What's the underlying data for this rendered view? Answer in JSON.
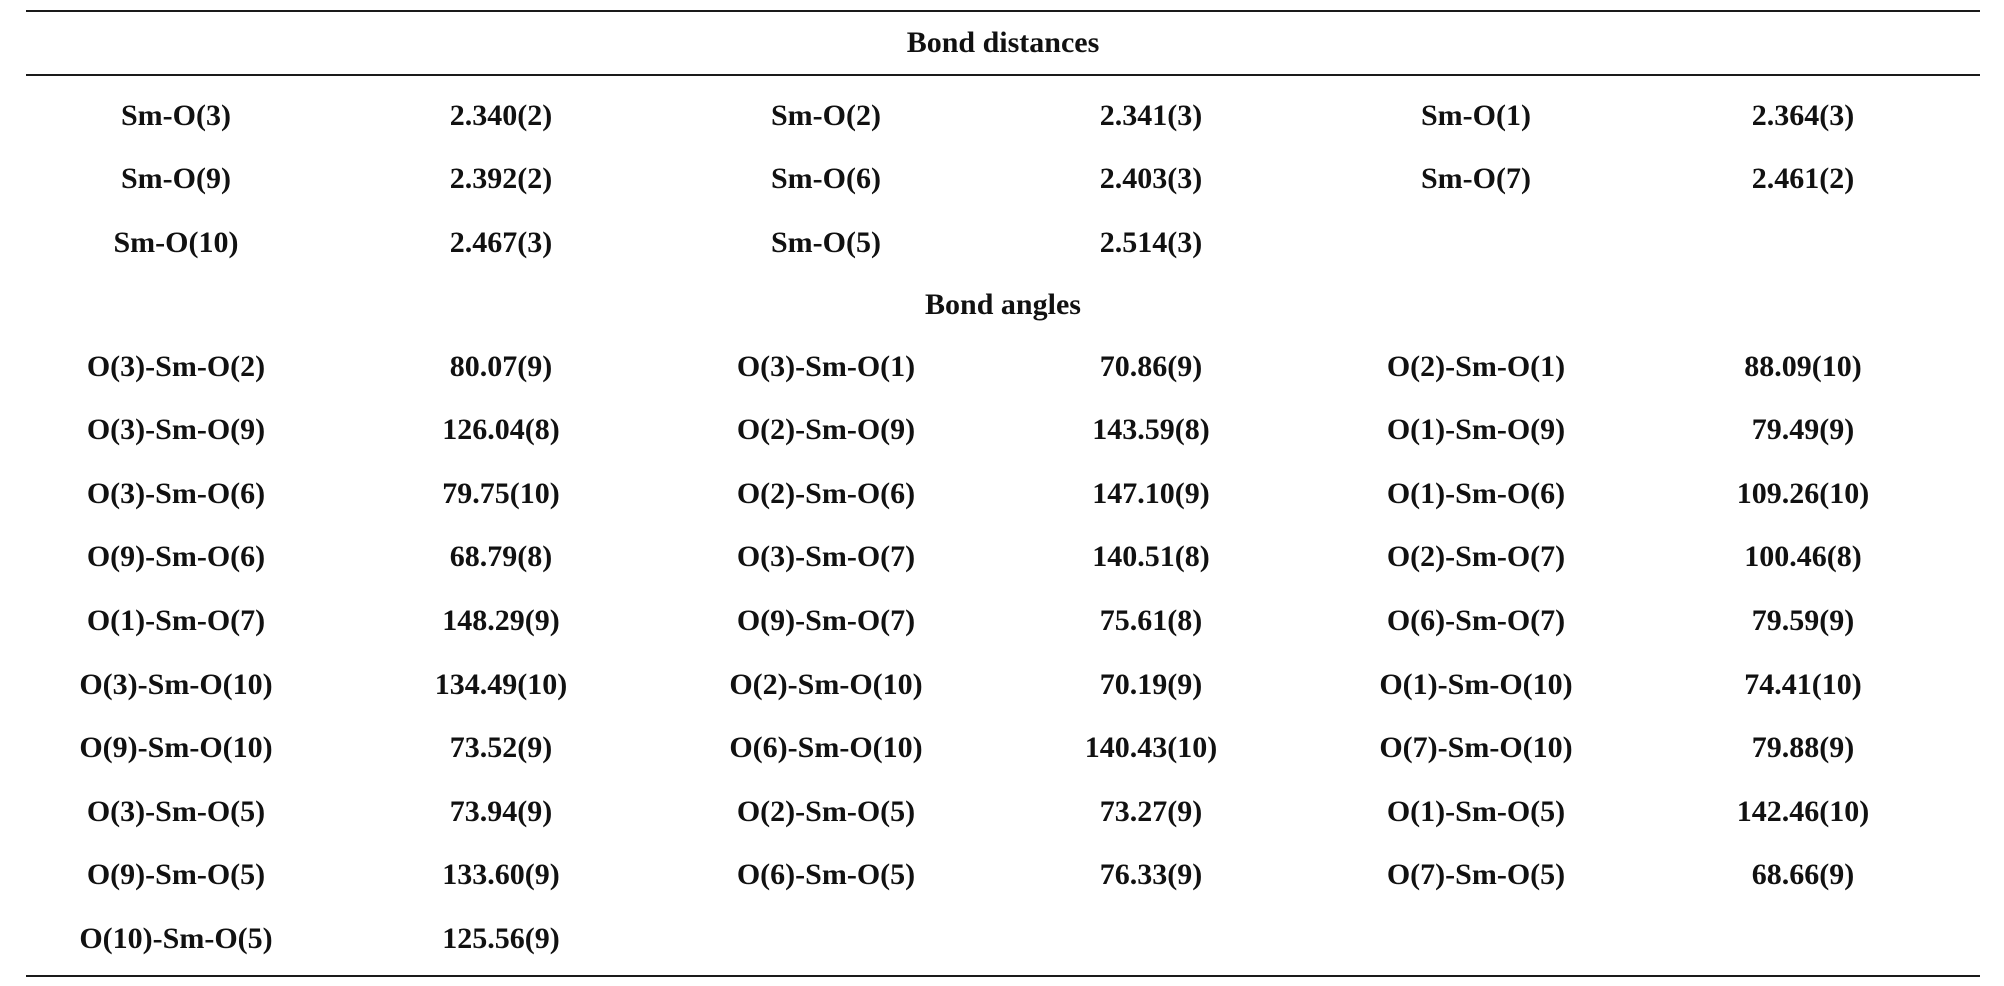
{
  "table": {
    "distances_title": "Bond distances",
    "angles_title": "Bond angles",
    "distances": [
      [
        {
          "label": "Sm-O(3)",
          "value": "2.340(2)"
        },
        {
          "label": "Sm-O(2)",
          "value": "2.341(3)"
        },
        {
          "label": "Sm-O(1)",
          "value": "2.364(3)"
        }
      ],
      [
        {
          "label": "Sm-O(9)",
          "value": "2.392(2)"
        },
        {
          "label": "Sm-O(6)",
          "value": "2.403(3)"
        },
        {
          "label": "Sm-O(7)",
          "value": "2.461(2)"
        }
      ],
      [
        {
          "label": "Sm-O(10)",
          "value": "2.467(3)"
        },
        {
          "label": "Sm-O(5)",
          "value": "2.514(3)"
        },
        {
          "label": "",
          "value": ""
        }
      ]
    ],
    "angles": [
      [
        {
          "label": "O(3)-Sm-O(2)",
          "value": "80.07(9)"
        },
        {
          "label": "O(3)-Sm-O(1)",
          "value": "70.86(9)"
        },
        {
          "label": "O(2)-Sm-O(1)",
          "value": "88.09(10)"
        }
      ],
      [
        {
          "label": "O(3)-Sm-O(9)",
          "value": "126.04(8)"
        },
        {
          "label": "O(2)-Sm-O(9)",
          "value": "143.59(8)"
        },
        {
          "label": "O(1)-Sm-O(9)",
          "value": "79.49(9)"
        }
      ],
      [
        {
          "label": "O(3)-Sm-O(6)",
          "value": "79.75(10)"
        },
        {
          "label": "O(2)-Sm-O(6)",
          "value": "147.10(9)"
        },
        {
          "label": "O(1)-Sm-O(6)",
          "value": "109.26(10)"
        }
      ],
      [
        {
          "label": "O(9)-Sm-O(6)",
          "value": "68.79(8)"
        },
        {
          "label": "O(3)-Sm-O(7)",
          "value": "140.51(8)"
        },
        {
          "label": "O(2)-Sm-O(7)",
          "value": "100.46(8)"
        }
      ],
      [
        {
          "label": "O(1)-Sm-O(7)",
          "value": "148.29(9)"
        },
        {
          "label": "O(9)-Sm-O(7)",
          "value": "75.61(8)"
        },
        {
          "label": "O(6)-Sm-O(7)",
          "value": "79.59(9)"
        }
      ],
      [
        {
          "label": "O(3)-Sm-O(10)",
          "value": "134.49(10)"
        },
        {
          "label": "O(2)-Sm-O(10)",
          "value": "70.19(9)"
        },
        {
          "label": "O(1)-Sm-O(10)",
          "value": "74.41(10)"
        }
      ],
      [
        {
          "label": "O(9)-Sm-O(10)",
          "value": "73.52(9)"
        },
        {
          "label": "O(6)-Sm-O(10)",
          "value": "140.43(10)"
        },
        {
          "label": "O(7)-Sm-O(10)",
          "value": "79.88(9)"
        }
      ],
      [
        {
          "label": "O(3)-Sm-O(5)",
          "value": "73.94(9)"
        },
        {
          "label": "O(2)-Sm-O(5)",
          "value": "73.27(9)"
        },
        {
          "label": "O(1)-Sm-O(5)",
          "value": "142.46(10)"
        }
      ],
      [
        {
          "label": "O(9)-Sm-O(5)",
          "value": "133.60(9)"
        },
        {
          "label": "O(6)-Sm-O(5)",
          "value": "76.33(9)"
        },
        {
          "label": "O(7)-Sm-O(5)",
          "value": "68.66(9)"
        }
      ],
      [
        {
          "label": "O(10)-Sm-O(5)",
          "value": "125.56(9)"
        },
        {
          "label": "",
          "value": ""
        },
        {
          "label": "",
          "value": ""
        }
      ]
    ]
  }
}
